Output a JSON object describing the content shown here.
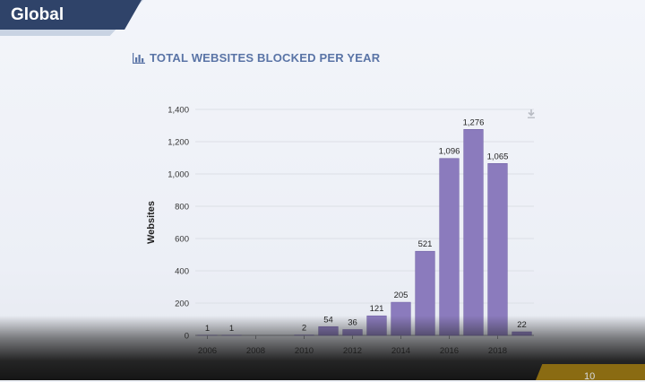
{
  "header": {
    "title": "Global"
  },
  "chart_heading": {
    "title": "TOTAL WEBSITES BLOCKED PER YEAR",
    "icon": "bar-chart-icon"
  },
  "export": {
    "icon": "download-icon"
  },
  "footer": {
    "page_number": "10"
  },
  "colors": {
    "banner_dark": "#2f4369",
    "banner_light": "#c9d3e3",
    "heading_text": "#5a74a6",
    "bar_fill": "#8b7bbd",
    "bar_stroke": "#7465a8",
    "footer_accent": "#8a6b12"
  },
  "chart_data": {
    "type": "bar",
    "title": "TOTAL WEBSITES BLOCKED PER YEAR",
    "xlabel": "",
    "ylabel": "Websites",
    "ylim": [
      0,
      1400
    ],
    "yticks": [
      0,
      200,
      400,
      600,
      800,
      1000,
      1200,
      1400
    ],
    "ytick_labels": [
      "0",
      "200",
      "400",
      "600",
      "800",
      "1,000",
      "1,200",
      "1,400"
    ],
    "xtick_labels": [
      "2006",
      "2008",
      "2010",
      "2012",
      "2014",
      "2016",
      "2018"
    ],
    "categories": [
      "2006",
      "2007",
      "2008",
      "2009",
      "2010",
      "2011",
      "2012",
      "2013",
      "2014",
      "2015",
      "2016",
      "2017",
      "2018",
      "2019"
    ],
    "values": [
      1,
      1,
      0,
      0,
      2,
      54,
      36,
      121,
      205,
      521,
      1096,
      1276,
      1065,
      22
    ],
    "data_labels": [
      "1",
      "1",
      "",
      "",
      "2",
      "54",
      "36",
      "121",
      "205",
      "521",
      "1,096",
      "1,276",
      "1,065",
      "22"
    ],
    "grid": true,
    "legend": "none"
  }
}
